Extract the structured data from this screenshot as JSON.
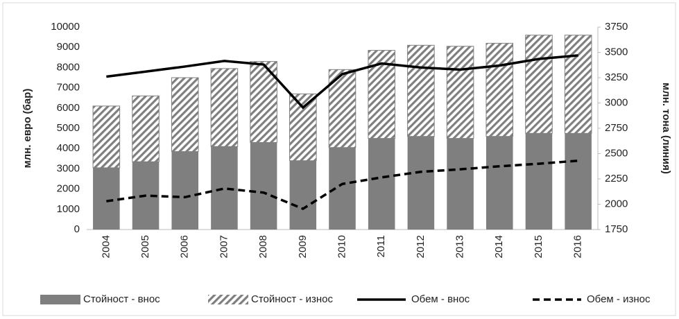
{
  "chart_data": {
    "type": "combo",
    "categories": [
      "2004",
      "2005",
      "2006",
      "2007",
      "2008",
      "2009",
      "2010",
      "2011",
      "2012",
      "2013",
      "2014",
      "2015",
      "2016"
    ],
    "y_label": "млн. евро (бар)",
    "y2_label": "млн. тона (линия)",
    "ylim": [
      0,
      10000
    ],
    "yticks": [
      0,
      1000,
      2000,
      3000,
      4000,
      5000,
      6000,
      7000,
      8000,
      9000,
      10000
    ],
    "y2lim": [
      1750,
      3750
    ],
    "y2ticks": [
      1750,
      2000,
      2250,
      2500,
      2750,
      3000,
      3250,
      3500,
      3750
    ],
    "series": [
      {
        "name": "Стойност - внос",
        "type": "bar",
        "color": "#7f7f7f",
        "values": [
          3050,
          3350,
          3850,
          4100,
          4300,
          3400,
          4050,
          4500,
          4600,
          4500,
          4600,
          4750,
          4750
        ]
      },
      {
        "name": "Стойност - износ",
        "type": "bar",
        "color": "#7f7f7f",
        "hatch": true,
        "values": [
          3050,
          3250,
          3650,
          3850,
          4000,
          3300,
          3850,
          4350,
          4500,
          4550,
          4600,
          4850,
          4850
        ]
      },
      {
        "name": "Обем - внос",
        "type": "line",
        "axis": "y2",
        "color": "#000000",
        "values": [
          3260,
          3310,
          3360,
          3415,
          3380,
          2955,
          3285,
          3390,
          3350,
          3330,
          3370,
          3435,
          3470
        ]
      },
      {
        "name": "Обем - износ",
        "type": "line",
        "axis": "y2",
        "color": "#000000",
        "dash": true,
        "values": [
          2030,
          2085,
          2070,
          2155,
          2115,
          1955,
          2200,
          2265,
          2320,
          2345,
          2375,
          2400,
          2430
        ]
      }
    ]
  }
}
